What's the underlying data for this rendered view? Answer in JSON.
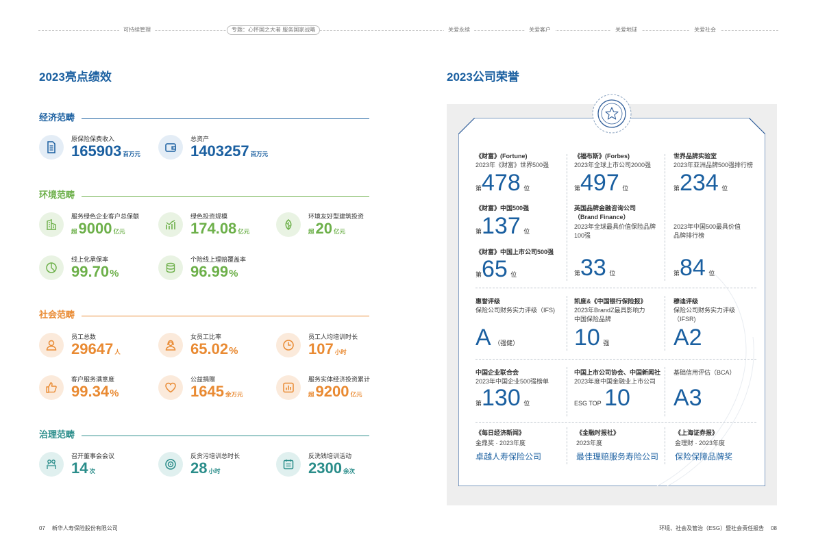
{
  "nav": {
    "items": [
      "可持续管理",
      "专题：心怀国之大者 服务国家战略",
      "关爱永续",
      "关爱客户",
      "关爱地球",
      "关爱社会"
    ]
  },
  "left": {
    "title": "2023亮点绩效",
    "economic": {
      "label": "经济范畴",
      "color": "#1a5fa0",
      "metrics": [
        {
          "label": "原保险保费收入",
          "value": "165903",
          "unit": "百万元",
          "icon": "document-icon"
        },
        {
          "label": "总资产",
          "value": "1403257",
          "unit": "百万元",
          "icon": "wallet-icon"
        }
      ]
    },
    "environment": {
      "label": "环境范畴",
      "color": "#6db04a",
      "metrics": [
        {
          "label": "服务绿色企业客户总保额",
          "prefix": "超",
          "value": "9000",
          "unit": "亿元",
          "icon": "green-building-icon"
        },
        {
          "label": "绿色投资规模",
          "value": "174.08",
          "unit": "亿元",
          "icon": "growth-chart-icon"
        },
        {
          "label": "环境友好型建筑投资",
          "prefix": "超",
          "value": "20",
          "unit": "亿元",
          "icon": "leaf-icon"
        },
        {
          "label": "线上化承保率",
          "value": "99.70",
          "unit": "%",
          "icon": "pie-chart-icon"
        },
        {
          "label": "个险线上理赔覆盖率",
          "value": "96.99",
          "unit": "%",
          "icon": "coin-stack-icon"
        }
      ]
    },
    "social": {
      "label": "社会范畴",
      "color": "#e98a32",
      "metrics": [
        {
          "label": "员工总数",
          "value": "29647",
          "unit": "人",
          "icon": "person-icon"
        },
        {
          "label": "女员工比率",
          "value": "65.02",
          "unit": "%",
          "icon": "female-employee-icon"
        },
        {
          "label": "员工人均培训时长",
          "value": "107",
          "unit": "小时",
          "icon": "clock-icon"
        },
        {
          "label": "客户服务满意度",
          "value": "99.34",
          "unit": "%",
          "icon": "thumbs-up-icon"
        },
        {
          "label": "公益捐赠",
          "value": "1645",
          "unit": "余万元",
          "icon": "heart-icon"
        },
        {
          "label": "服务实体经济投资累计",
          "prefix": "超",
          "value": "9200",
          "unit": "亿元",
          "icon": "bar-chart-icon"
        }
      ]
    },
    "governance": {
      "label": "治理范畴",
      "color": "#2a8d8a",
      "metrics": [
        {
          "label": "召开董事会会议",
          "value": "14",
          "unit": "次",
          "icon": "meeting-icon"
        },
        {
          "label": "反贪污培训总时长",
          "value": "28",
          "unit": "小时",
          "icon": "target-icon"
        },
        {
          "label": "反洗钱培训活动",
          "value": "2300",
          "unit": "余次",
          "icon": "calendar-icon"
        }
      ]
    }
  },
  "right": {
    "title": "2023公司荣誉",
    "honors": [
      {
        "org": "《财富》(Fortune)",
        "desc": "2023年《财富》世界500强",
        "pre": "第",
        "num": "478",
        "suf": "位"
      },
      {
        "org": "《福布斯》(Forbes)",
        "desc": "2023年全球上市公司2000强",
        "pre": "第",
        "num": "497",
        "suf": "位"
      },
      {
        "org": "世界品牌实验室",
        "desc": "2023年亚洲品牌500强排行榜",
        "pre": "第",
        "num": "234",
        "suf": "位"
      },
      {
        "org": "《财富》中国500强",
        "pre": "第",
        "num": "137",
        "suf": "位"
      },
      {
        "org": "英国品牌金融咨询公司",
        "org2": "（Brand Finance）",
        "desc": "2023年全球最具价值保险品牌",
        "desc2": "100强",
        "pre": "第",
        "num": "33",
        "suf": "位"
      },
      {
        "desc": "2023年中国500最具价值",
        "desc2": "品牌排行榜",
        "pre": "第",
        "num": "84",
        "suf": "位"
      },
      {
        "org": "《财富》中国上市公司500强",
        "pre": "第",
        "num": "65",
        "suf": "位"
      },
      {
        "org": "惠誉评级",
        "desc": "保险公司财务实力评级（IFS)",
        "num": "A",
        "suf": "（强健）"
      },
      {
        "org": "凯度&《中国银行保险报》",
        "desc": "2023年BrandZ最具影响力",
        "desc2": "中国保险品牌",
        "num": "10",
        "suf": "强"
      },
      {
        "org": "穆迪评级",
        "desc": "保险公司财务实力评级",
        "desc2": "（IFSR)",
        "num": "A2"
      },
      {
        "org": "中国企业联合会",
        "desc": "2023年中国企业500强榜单",
        "pre": "第",
        "num": "130",
        "suf": "位"
      },
      {
        "org": "中国上市公司协会、中国新闻社",
        "desc": "2023年度中国金融业上市公司",
        "pre": "ESG TOP",
        "num": "10"
      },
      {
        "org": "基础信用评估（BCA）",
        "num": "A3"
      },
      {
        "org": "《每日经济新闻》",
        "desc": "金鼎奖 · 2023年度",
        "award": "卓越人寿保险公司"
      },
      {
        "org": "《金融时报社》",
        "desc": "2023年度",
        "award": "最佳理赔服务寿险公司"
      },
      {
        "org": "《上海证券报》",
        "desc": "金理财 · 2023年度",
        "award": "保险保障品牌奖"
      }
    ]
  },
  "footer": {
    "left_page": "07",
    "left_text": "新华人寿保险股份有限公司",
    "right_text": "环境、社会及管治（ESG）暨社会责任报告",
    "right_page": "08"
  }
}
